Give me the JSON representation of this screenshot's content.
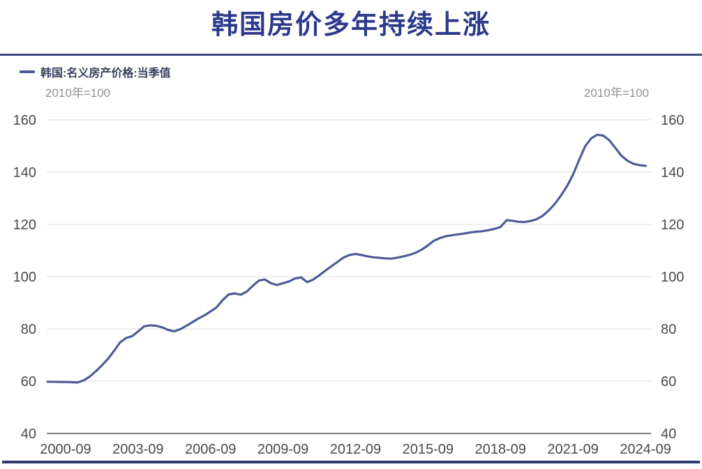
{
  "title": "韩国房价多年持续上涨",
  "legend": {
    "series_label": "韩国:名义房产价格:当季值"
  },
  "unit_left": "2010年=100",
  "unit_right": "2010年=100",
  "colors": {
    "title": "#2d3a8c",
    "line": "#4f5b96",
    "top_rule": "#384a7c",
    "bottom_rule": "#2c3a6e",
    "grid": "#e3e3e3",
    "axis": "#555555",
    "tick_label": "#4a4a4a",
    "unit_label": "#909090"
  },
  "chart_data": {
    "type": "line",
    "title": "韩国房价多年持续上涨",
    "ylabel": "2010年=100",
    "ylim": [
      40,
      160
    ],
    "y_ticks": [
      40,
      60,
      80,
      100,
      120,
      140,
      160
    ],
    "grid": "horizontal",
    "legend_position": "top-left",
    "x_tick_labels": [
      "2000-09",
      "2003-09",
      "2006-09",
      "2009-09",
      "2012-09",
      "2015-09",
      "2018-09",
      "2021-09",
      "2024-09"
    ],
    "x_tick_every_n_points": 12,
    "x_tick_first_index": 3,
    "series": [
      {
        "name": "韩国:名义房产价格:当季值",
        "x": [
          "1999-12",
          "2000-03",
          "2000-06",
          "2000-09",
          "2000-12",
          "2001-03",
          "2001-06",
          "2001-09",
          "2001-12",
          "2002-03",
          "2002-06",
          "2002-09",
          "2002-12",
          "2003-03",
          "2003-06",
          "2003-09",
          "2003-12",
          "2004-03",
          "2004-06",
          "2004-09",
          "2004-12",
          "2005-03",
          "2005-06",
          "2005-09",
          "2005-12",
          "2006-03",
          "2006-06",
          "2006-09",
          "2006-12",
          "2007-03",
          "2007-06",
          "2007-09",
          "2007-12",
          "2008-03",
          "2008-06",
          "2008-09",
          "2008-12",
          "2009-03",
          "2009-06",
          "2009-09",
          "2009-12",
          "2010-03",
          "2010-06",
          "2010-09",
          "2010-12",
          "2011-03",
          "2011-06",
          "2011-09",
          "2011-12",
          "2012-03",
          "2012-06",
          "2012-09",
          "2012-12",
          "2013-03",
          "2013-06",
          "2013-09",
          "2013-12",
          "2014-03",
          "2014-06",
          "2014-09",
          "2014-12",
          "2015-03",
          "2015-06",
          "2015-09",
          "2015-12",
          "2016-03",
          "2016-06",
          "2016-09",
          "2016-12",
          "2017-03",
          "2017-06",
          "2017-09",
          "2017-12",
          "2018-03",
          "2018-06",
          "2018-09",
          "2018-12",
          "2019-03",
          "2019-06",
          "2019-09",
          "2019-12",
          "2020-03",
          "2020-06",
          "2020-09",
          "2020-12",
          "2021-03",
          "2021-06",
          "2021-09",
          "2021-12",
          "2022-03",
          "2022-06",
          "2022-09",
          "2022-12",
          "2023-03",
          "2023-06",
          "2023-09",
          "2023-12",
          "2024-03",
          "2024-06",
          "2024-09"
        ],
        "values": [
          59.8,
          59.8,
          59.7,
          59.7,
          59.6,
          59.5,
          60.3,
          61.8,
          63.8,
          66.0,
          68.5,
          71.5,
          74.8,
          76.5,
          77.2,
          79.0,
          81.0,
          81.4,
          81.2,
          80.6,
          79.6,
          79.1,
          79.9,
          81.2,
          82.6,
          84.0,
          85.2,
          86.7,
          88.3,
          91.0,
          93.2,
          93.6,
          93.1,
          94.3,
          96.5,
          98.5,
          98.9,
          97.5,
          96.8,
          97.5,
          98.2,
          99.3,
          99.7,
          97.9,
          98.9,
          100.5,
          102.3,
          104.0,
          105.6,
          107.3,
          108.3,
          108.7,
          108.3,
          107.8,
          107.4,
          107.2,
          107.0,
          106.9,
          107.3,
          107.8,
          108.4,
          109.2,
          110.4,
          112.0,
          113.8,
          114.8,
          115.5,
          115.9,
          116.2,
          116.5,
          116.9,
          117.2,
          117.4,
          117.8,
          118.3,
          119.0,
          121.6,
          121.4,
          121.0,
          120.9,
          121.3,
          122.0,
          123.3,
          125.4,
          127.9,
          131.0,
          134.6,
          139.0,
          144.6,
          149.8,
          152.9,
          154.3,
          154.0,
          152.2,
          149.3,
          146.3,
          144.4,
          143.2,
          142.7,
          142.4
        ]
      }
    ]
  }
}
